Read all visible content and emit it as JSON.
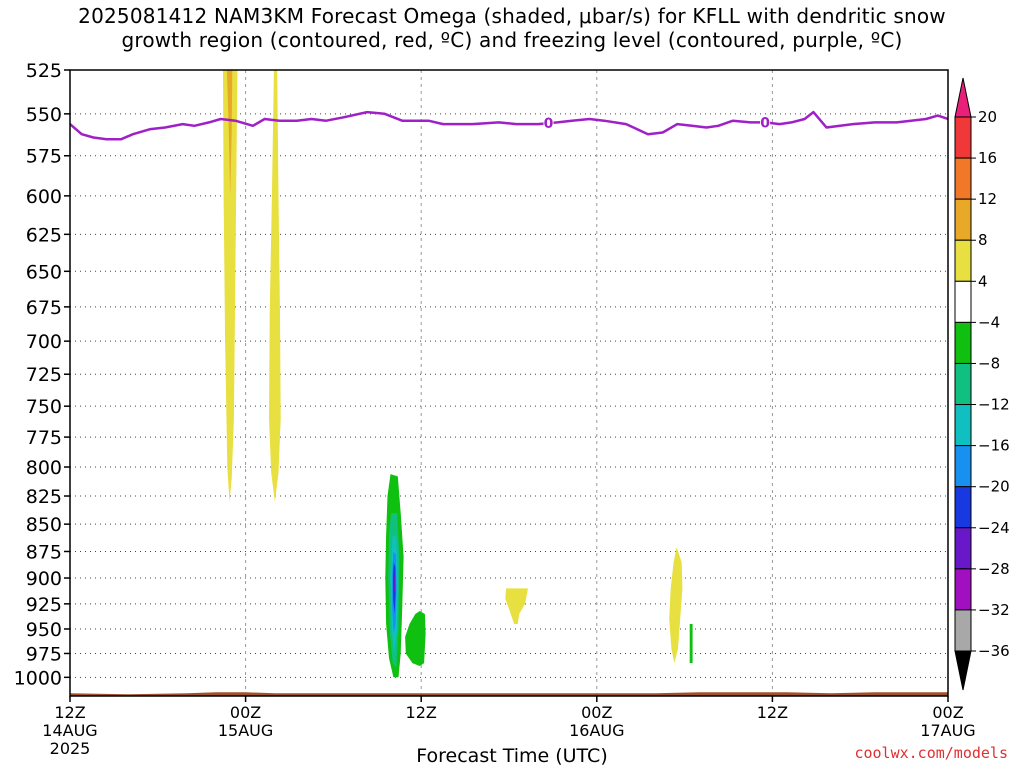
{
  "chart_data": {
    "type": "contour-timeheight",
    "title_line1": "2025081412 NAM3KM Forecast Omega (shaded, μbar/s) for KFLL with dendritic snow",
    "title_line2": "growth region (contoured, red, ºC) and freezing level (contoured, purple, ºC)",
    "xlabel": "Forecast Time (UTC)",
    "ylabel": "",
    "y_axis": {
      "scale": "log-pressure",
      "range": [
        525,
        1020
      ],
      "ticks": [
        "525",
        "550",
        "575",
        "600",
        "625",
        "650",
        "675",
        "700",
        "725",
        "750",
        "775",
        "800",
        "825",
        "850",
        "875",
        "900",
        "925",
        "950",
        "975",
        "1000"
      ]
    },
    "x_axis": {
      "range_hours": [
        0,
        60
      ],
      "ticks": [
        {
          "hour": 0,
          "label": "12Z",
          "date": "14AUG",
          "year": "2025"
        },
        {
          "hour": 12,
          "label": "00Z",
          "date": "15AUG",
          "year": ""
        },
        {
          "hour": 24,
          "label": "12Z",
          "date": "",
          "year": ""
        },
        {
          "hour": 36,
          "label": "00Z",
          "date": "16AUG",
          "year": ""
        },
        {
          "hour": 48,
          "label": "12Z",
          "date": "",
          "year": ""
        },
        {
          "hour": 60,
          "label": "00Z",
          "date": "17AUG",
          "year": ""
        }
      ]
    },
    "grid": true,
    "colorbar": {
      "placement": "right",
      "tick_labels": [
        "20",
        "16",
        "12",
        "8",
        "4",
        "−4",
        "−8",
        "−12",
        "−16",
        "−20",
        "−24",
        "−28",
        "−32",
        "−36"
      ],
      "colors_top_to_bottom": [
        "#e8207a",
        "#f03838",
        "#f07828",
        "#e8a828",
        "#e8e040",
        "#ffffff",
        "#10c010",
        "#10c080",
        "#10c0c0",
        "#1890f0",
        "#1838e0",
        "#6818c8",
        "#a010c0",
        "#a8a8a8",
        "#000000"
      ]
    },
    "freezing_level": {
      "label": "0",
      "color": "#a020c8",
      "points": [
        [
          0,
          556
        ],
        [
          0.8,
          562
        ],
        [
          1.6,
          564
        ],
        [
          2.5,
          565
        ],
        [
          3.5,
          565
        ],
        [
          4.3,
          562
        ],
        [
          5.5,
          559
        ],
        [
          6.5,
          558
        ],
        [
          7.7,
          556
        ],
        [
          8.5,
          557
        ],
        [
          9.5,
          555
        ],
        [
          10.3,
          553
        ],
        [
          11.3,
          554
        ],
        [
          12.5,
          557
        ],
        [
          13.3,
          553
        ],
        [
          14.3,
          554
        ],
        [
          15.5,
          554
        ],
        [
          16.5,
          553
        ],
        [
          17.5,
          554
        ],
        [
          18.7,
          552
        ],
        [
          20.3,
          549
        ],
        [
          21.5,
          550
        ],
        [
          22.7,
          554
        ],
        [
          24.5,
          554
        ],
        [
          25.5,
          556
        ],
        [
          27.5,
          556
        ],
        [
          29.3,
          555
        ],
        [
          30.5,
          556
        ],
        [
          32,
          556
        ],
        [
          33.3,
          555
        ],
        [
          34.3,
          554
        ],
        [
          35.5,
          553
        ],
        [
          36.5,
          554
        ],
        [
          38,
          556
        ],
        [
          39.5,
          562
        ],
        [
          40.5,
          561
        ],
        [
          41.5,
          556
        ],
        [
          42.5,
          557
        ],
        [
          43.5,
          558
        ],
        [
          44.3,
          557
        ],
        [
          45.3,
          554
        ],
        [
          46.5,
          555
        ],
        [
          47.5,
          555
        ],
        [
          48.5,
          556
        ],
        [
          49.3,
          555
        ],
        [
          50.2,
          553
        ],
        [
          50.8,
          549
        ],
        [
          51.7,
          558
        ],
        [
          53.5,
          556
        ],
        [
          55,
          555
        ],
        [
          56.5,
          555
        ],
        [
          58.5,
          553
        ],
        [
          59.3,
          551
        ],
        [
          60,
          553
        ]
      ]
    },
    "omega_regions": [
      {
        "value": 6,
        "color": "#e8e040",
        "points": [
          [
            10.45,
            519
          ],
          [
            11.45,
            519
          ],
          [
            11.4,
            560
          ],
          [
            11.3,
            650
          ],
          [
            11.2,
            760
          ],
          [
            11.05,
            810
          ],
          [
            10.9,
            830
          ],
          [
            10.75,
            800
          ],
          [
            10.6,
            700
          ],
          [
            10.5,
            600
          ]
        ]
      },
      {
        "value": 9,
        "color": "#e8a828",
        "points": [
          [
            10.7,
            519
          ],
          [
            11.1,
            519
          ],
          [
            11.05,
            560
          ],
          [
            10.95,
            600
          ],
          [
            10.85,
            560
          ]
        ]
      },
      {
        "value": 6,
        "color": "#e8e040",
        "points": [
          [
            13.95,
            519
          ],
          [
            14.15,
            519
          ],
          [
            14.25,
            600
          ],
          [
            14.35,
            680
          ],
          [
            14.4,
            760
          ],
          [
            14.25,
            805
          ],
          [
            14.0,
            830
          ],
          [
            13.75,
            805
          ],
          [
            13.6,
            760
          ],
          [
            13.65,
            680
          ],
          [
            13.8,
            600
          ]
        ]
      },
      {
        "value": -6,
        "color": "#10c010",
        "points": [
          [
            21.9,
            806
          ],
          [
            22.4,
            808
          ],
          [
            22.6,
            840
          ],
          [
            22.8,
            880
          ],
          [
            22.7,
            930
          ],
          [
            22.6,
            975
          ],
          [
            22.45,
            1000
          ],
          [
            22.1,
            1000
          ],
          [
            21.8,
            980
          ],
          [
            21.6,
            945
          ],
          [
            21.55,
            900
          ],
          [
            21.6,
            860
          ],
          [
            21.7,
            825
          ]
        ]
      },
      {
        "value": -10,
        "color": "#10c080",
        "points": [
          [
            21.95,
            840
          ],
          [
            22.35,
            840
          ],
          [
            22.5,
            880
          ],
          [
            22.45,
            950
          ],
          [
            22.3,
            990
          ],
          [
            22.05,
            985
          ],
          [
            21.85,
            950
          ],
          [
            21.75,
            900
          ],
          [
            21.8,
            860
          ]
        ]
      },
      {
        "value": -14,
        "color": "#10c0c0",
        "points": [
          [
            22.05,
            860
          ],
          [
            22.3,
            862
          ],
          [
            22.4,
            900
          ],
          [
            22.35,
            950
          ],
          [
            22.15,
            975
          ],
          [
            22.0,
            950
          ],
          [
            21.9,
            900
          ]
        ]
      },
      {
        "value": -18,
        "color": "#1890f0",
        "points": [
          [
            22.1,
            875
          ],
          [
            22.28,
            878
          ],
          [
            22.32,
            910
          ],
          [
            22.25,
            945
          ],
          [
            22.12,
            955
          ],
          [
            22.02,
            930
          ],
          [
            22.0,
            900
          ]
        ]
      },
      {
        "value": -22,
        "color": "#1838e0",
        "points": [
          [
            22.12,
            885
          ],
          [
            22.24,
            890
          ],
          [
            22.25,
            915
          ],
          [
            22.18,
            935
          ],
          [
            22.08,
            920
          ],
          [
            22.08,
            895
          ]
        ]
      },
      {
        "value": -26,
        "color": "#6818c8",
        "points": [
          [
            22.14,
            895
          ],
          [
            22.2,
            898
          ],
          [
            22.2,
            915
          ],
          [
            22.12,
            912
          ]
        ]
      },
      {
        "value": -6,
        "color": "#10c010",
        "points": [
          [
            23.9,
            932
          ],
          [
            24.25,
            935
          ],
          [
            24.3,
            955
          ],
          [
            24.2,
            985
          ],
          [
            23.9,
            988
          ],
          [
            23.4,
            985
          ],
          [
            22.95,
            975
          ],
          [
            22.9,
            958
          ],
          [
            23.2,
            945
          ],
          [
            23.6,
            935
          ]
        ]
      },
      {
        "value": 6,
        "color": "#e8e040",
        "points": [
          [
            29.8,
            910
          ],
          [
            31.3,
            910
          ],
          [
            31.1,
            925
          ],
          [
            30.7,
            935
          ],
          [
            30.6,
            945
          ],
          [
            30.35,
            945
          ],
          [
            30.0,
            930
          ],
          [
            29.75,
            920
          ]
        ]
      },
      {
        "value": 6,
        "color": "#e8e040",
        "points": [
          [
            41.45,
            871
          ],
          [
            41.8,
            885
          ],
          [
            41.85,
            910
          ],
          [
            41.7,
            940
          ],
          [
            41.55,
            970
          ],
          [
            41.3,
            985
          ],
          [
            41.1,
            970
          ],
          [
            40.95,
            940
          ],
          [
            41.05,
            910
          ],
          [
            41.25,
            885
          ]
        ]
      },
      {
        "value": -6,
        "color": "#10c010",
        "points": [
          [
            42.35,
            945
          ],
          [
            42.55,
            945
          ],
          [
            42.55,
            985
          ],
          [
            42.35,
            985
          ]
        ]
      }
    ],
    "terrain_color": "#a0522d"
  }
}
